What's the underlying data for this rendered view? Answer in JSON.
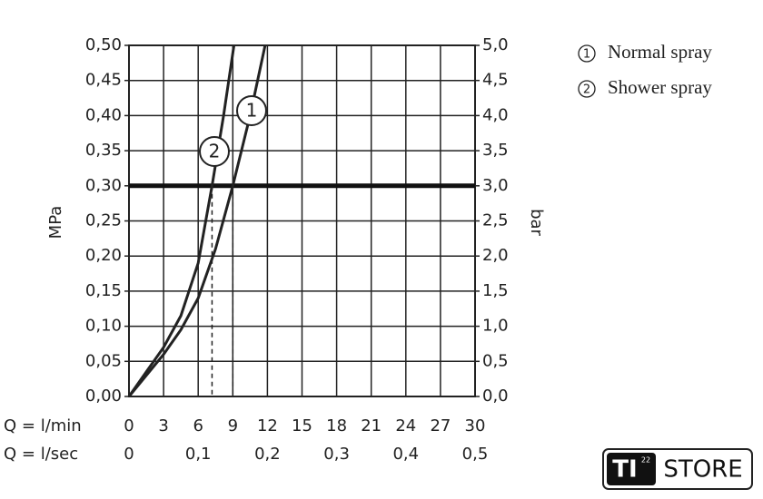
{
  "chart_data": {
    "type": "line",
    "ylabel": "MPa",
    "y2label": "bar",
    "xlabel": "Q = l/min",
    "x2label": "Q = l/sec",
    "xlim": [
      0,
      30
    ],
    "xticks": [
      0,
      3,
      6,
      9,
      12,
      15,
      18,
      21,
      24,
      27,
      30
    ],
    "x2lim": [
      0,
      0.5
    ],
    "x2ticks": [
      0,
      {
        "value": 0.1,
        "label": "0,1"
      },
      {
        "value": 0.2,
        "label": "0,2"
      },
      {
        "value": 0.3,
        "label": "0,3"
      },
      {
        "value": 0.4,
        "label": "0,4"
      },
      {
        "value": 0.5,
        "label": "0,5"
      }
    ],
    "ylim": [
      0,
      0.5
    ],
    "yticks": [
      {
        "value": 0,
        "label": "0,00"
      },
      {
        "value": 0.05,
        "label": "0,05"
      },
      {
        "value": 0.1,
        "label": "0,10"
      },
      {
        "value": 0.15,
        "label": "0,15"
      },
      {
        "value": 0.2,
        "label": "0,20"
      },
      {
        "value": 0.25,
        "label": "0,25"
      },
      {
        "value": 0.3,
        "label": "0,30"
      },
      {
        "value": 0.35,
        "label": "0,35"
      },
      {
        "value": 0.4,
        "label": "0,40"
      },
      {
        "value": 0.45,
        "label": "0,45"
      },
      {
        "value": 0.5,
        "label": "0,50"
      }
    ],
    "y2lim": [
      0,
      5
    ],
    "y2ticks": [
      {
        "value": 0,
        "label": "0,0"
      },
      {
        "value": 0.5,
        "label": "0,5"
      },
      {
        "value": 1,
        "label": "1,0"
      },
      {
        "value": 1.5,
        "label": "1,5"
      },
      {
        "value": 2,
        "label": "2,0"
      },
      {
        "value": 2.5,
        "label": "2,5"
      },
      {
        "value": 3,
        "label": "3,0"
      },
      {
        "value": 3.5,
        "label": "3,5"
      },
      {
        "value": 4,
        "label": "4,0"
      },
      {
        "value": 4.5,
        "label": "4,5"
      },
      {
        "value": 5,
        "label": "5,0"
      }
    ],
    "grid": true,
    "reference_line": 0.3,
    "series": [
      {
        "name": "Normal spray",
        "label": "1",
        "color": "#222222",
        "x": [
          0,
          1.5,
          3,
          4.5,
          6,
          7.5,
          9,
          10.5,
          11.8
        ],
        "values": [
          0,
          0.03,
          0.06,
          0.095,
          0.14,
          0.21,
          0.3,
          0.4,
          0.5
        ]
      },
      {
        "name": "Shower spray",
        "label": "2",
        "color": "#222222",
        "x": [
          0,
          1.5,
          3,
          4.5,
          6,
          7.2,
          8.2,
          9.1
        ],
        "values": [
          0,
          0.035,
          0.07,
          0.115,
          0.19,
          0.3,
          0.4,
          0.5
        ]
      }
    ]
  },
  "brand": {
    "mark": "TI",
    "superscript": "22",
    "name": "STORE"
  }
}
